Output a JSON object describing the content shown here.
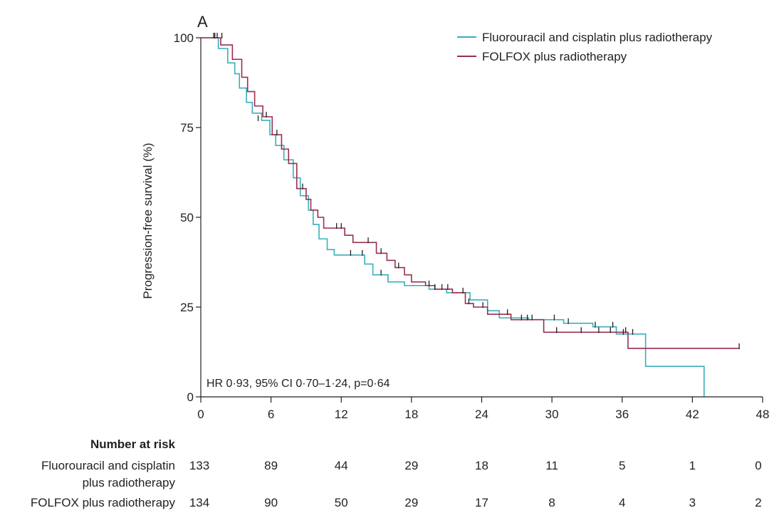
{
  "panel_label": "A",
  "colors": {
    "fluorouracil_cisplatin": "#3aaebc",
    "folfox": "#9b2d4e",
    "axis": "#231f20"
  },
  "chart_data": {
    "type": "line",
    "subtype": "kaplan-meier step curve with censor ticks",
    "title": "",
    "xlabel": "",
    "ylabel": "Progression-free survival (%)",
    "xlim": [
      0,
      48
    ],
    "ylim": [
      0,
      100
    ],
    "x_ticks": [
      0,
      6,
      12,
      18,
      24,
      30,
      36,
      42,
      48
    ],
    "y_ticks": [
      0,
      25,
      50,
      75,
      100
    ],
    "grid": false,
    "legend_position": "top-right",
    "annotation": "HR 0·93, 95% CI 0·70–1·24, p=0·64",
    "series": [
      {
        "name": "Fluorouracil and cisplatin plus radiotherapy",
        "color": "#3aaebc",
        "steps": [
          [
            0,
            100
          ],
          [
            1.5,
            97
          ],
          [
            2.3,
            93
          ],
          [
            2.9,
            90
          ],
          [
            3.3,
            86
          ],
          [
            3.9,
            82
          ],
          [
            4.4,
            79
          ],
          [
            5.2,
            77
          ],
          [
            5.9,
            73
          ],
          [
            6.4,
            70
          ],
          [
            7.1,
            66
          ],
          [
            7.9,
            61
          ],
          [
            8.5,
            56
          ],
          [
            9.2,
            52
          ],
          [
            9.6,
            48
          ],
          [
            10.1,
            44
          ],
          [
            10.8,
            41
          ],
          [
            11.4,
            39.5
          ],
          [
            14.0,
            37
          ],
          [
            14.7,
            34
          ],
          [
            16.0,
            32
          ],
          [
            17.4,
            31
          ],
          [
            19.5,
            30
          ],
          [
            21.0,
            29
          ],
          [
            23.0,
            27
          ],
          [
            24.5,
            24
          ],
          [
            25.5,
            22
          ],
          [
            28.0,
            21.5
          ],
          [
            31.0,
            20.5
          ],
          [
            33.5,
            19.5
          ],
          [
            35.5,
            17.5
          ],
          [
            38.0,
            8.5
          ],
          [
            43.0,
            0
          ]
        ],
        "end_x": 43.0,
        "censored": [
          [
            1.1,
            100
          ],
          [
            1.4,
            100
          ],
          [
            4.9,
            77
          ],
          [
            12.8,
            39.5
          ],
          [
            13.8,
            39.5
          ],
          [
            15.4,
            34
          ],
          [
            20.0,
            30
          ],
          [
            22.4,
            29
          ],
          [
            27.9,
            21.5
          ],
          [
            30.2,
            21.5
          ],
          [
            31.4,
            20.5
          ],
          [
            33.7,
            19.5
          ],
          [
            35.2,
            19.5
          ],
          [
            36.1,
            17.5
          ],
          [
            36.9,
            17.5
          ]
        ]
      },
      {
        "name": "FOLFOX plus radiotherapy",
        "color": "#9b2d4e",
        "steps": [
          [
            0,
            100
          ],
          [
            1.7,
            98
          ],
          [
            2.7,
            94
          ],
          [
            3.5,
            89
          ],
          [
            4.0,
            85
          ],
          [
            4.6,
            81
          ],
          [
            5.3,
            78
          ],
          [
            6.1,
            73
          ],
          [
            6.9,
            69
          ],
          [
            7.5,
            65
          ],
          [
            8.2,
            58
          ],
          [
            9.0,
            55
          ],
          [
            9.4,
            52
          ],
          [
            10.0,
            50
          ],
          [
            10.5,
            47
          ],
          [
            12.3,
            45
          ],
          [
            13.0,
            43
          ],
          [
            15.0,
            40
          ],
          [
            15.9,
            38
          ],
          [
            16.6,
            36
          ],
          [
            17.4,
            34
          ],
          [
            18.0,
            32
          ],
          [
            19.2,
            31
          ],
          [
            20.0,
            30
          ],
          [
            21.5,
            29
          ],
          [
            22.6,
            26
          ],
          [
            23.3,
            25
          ],
          [
            24.5,
            23
          ],
          [
            26.5,
            21.5
          ],
          [
            29.3,
            18
          ],
          [
            35.8,
            18
          ],
          [
            36.5,
            13.5
          ]
        ],
        "end_x": 46.0,
        "censored": [
          [
            1.2,
            100
          ],
          [
            1.8,
            100
          ],
          [
            5.6,
            78
          ],
          [
            6.5,
            73
          ],
          [
            8.7,
            58
          ],
          [
            11.6,
            47
          ],
          [
            12.0,
            47
          ],
          [
            14.3,
            43
          ],
          [
            15.4,
            40
          ],
          [
            16.9,
            36
          ],
          [
            19.5,
            31
          ],
          [
            20.6,
            30
          ],
          [
            21.1,
            30
          ],
          [
            22.9,
            26
          ],
          [
            24.1,
            25
          ],
          [
            26.2,
            23
          ],
          [
            27.4,
            21.5
          ],
          [
            28.3,
            21.5
          ],
          [
            30.4,
            18
          ],
          [
            32.5,
            18
          ],
          [
            34.0,
            18
          ],
          [
            35.0,
            18
          ],
          [
            36.3,
            18
          ],
          [
            46.0,
            13.5
          ]
        ]
      }
    ]
  },
  "risk_table": {
    "heading": "Number at risk",
    "rows": [
      {
        "label_lines": [
          "Fluorouracil and cisplatin",
          "plus radiotherapy"
        ],
        "values": [
          133,
          89,
          44,
          29,
          18,
          11,
          5,
          1,
          0
        ]
      },
      {
        "label_lines": [
          "FOLFOX plus radiotherapy"
        ],
        "values": [
          134,
          90,
          50,
          29,
          17,
          8,
          4,
          3,
          2
        ]
      }
    ]
  }
}
